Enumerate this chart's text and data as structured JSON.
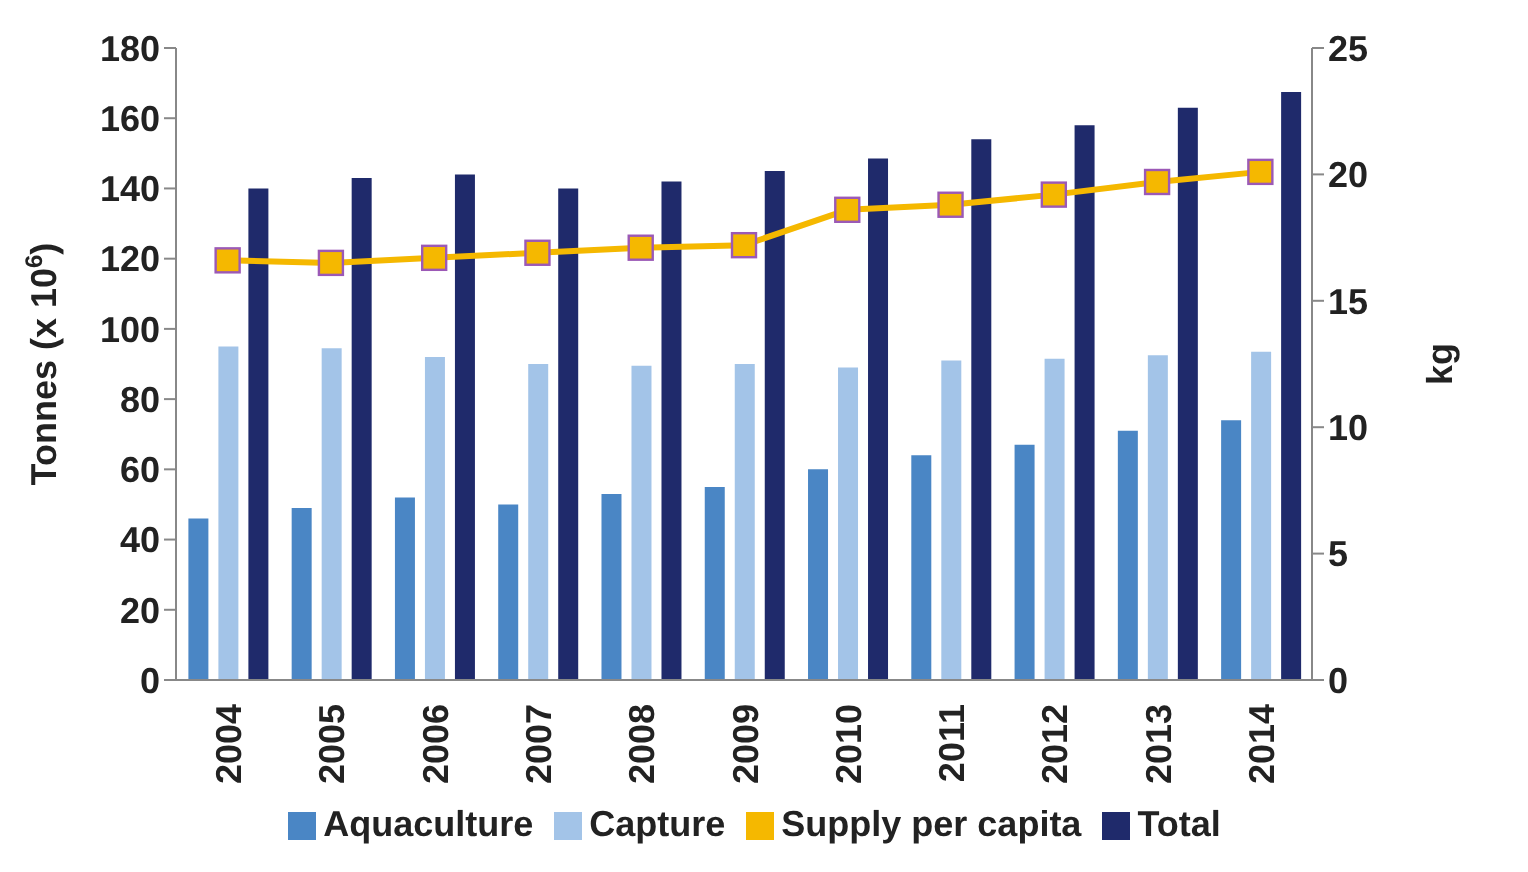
{
  "chart_data": {
    "type": "bar",
    "xlabel": null,
    "ylabel": "Tonnes (x 10$^{6}$)",
    "y2label": "kg",
    "categories": [
      "2004",
      "2005",
      "2006",
      "2007",
      "2008",
      "2009",
      "2010",
      "2011",
      "2012",
      "2013",
      "2014"
    ],
    "series": [
      {
        "name": "Aquaculture",
        "color": "#4a86c5",
        "values": [
          46,
          49,
          52,
          50,
          53,
          55,
          60,
          64,
          67,
          71,
          74
        ]
      },
      {
        "name": "Capture",
        "color": "#a3c4e8",
        "values": [
          95,
          94.5,
          92,
          90,
          89.5,
          90,
          89,
          91,
          91.5,
          92.5,
          93.5
        ]
      },
      {
        "name": "Total",
        "color": "#1f2a6b",
        "values": [
          140,
          143,
          144,
          140,
          142,
          145,
          148.5,
          154,
          158,
          163,
          167.5
        ]
      },
      {
        "name": "Supply per capita",
        "type": "line",
        "axis": "y2",
        "color": "#f5b800",
        "values": [
          16.6,
          16.5,
          16.7,
          16.9,
          17.1,
          17.2,
          18.6,
          18.8,
          19.2,
          19.7,
          20.1
        ],
        "marker": "square"
      }
    ],
    "ylim": [
      0,
      180
    ],
    "yticks": [
      0,
      20,
      40,
      60,
      80,
      100,
      120,
      140,
      160,
      180
    ],
    "y2lim": [
      0,
      25
    ],
    "y2ticks": [
      0,
      5,
      10,
      15,
      20,
      25
    ],
    "grid": false,
    "legend": "bottom"
  }
}
